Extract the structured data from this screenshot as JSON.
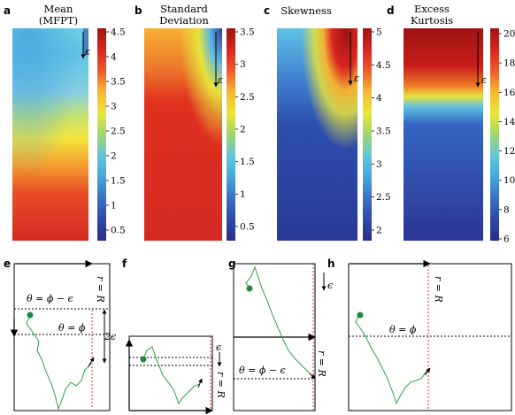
{
  "panel_labels": {
    "a": "a",
    "b": "b",
    "c": "c",
    "d": "d",
    "e": "e",
    "f": "f",
    "g": "g",
    "h": "h"
  },
  "titles": {
    "a": [
      "Mean",
      "(MFPT)"
    ],
    "b": [
      "Standard",
      "Deviation"
    ],
    "c": [
      "Skewness"
    ],
    "d": [
      "Excess",
      "Kurtosis"
    ]
  },
  "epsilon": "ε",
  "colorbars": {
    "a": {
      "ticks": [
        "4.5",
        "4",
        "3.5",
        "3",
        "2.5",
        "2",
        "1.5",
        "1",
        "0.5"
      ]
    },
    "b": {
      "ticks": [
        "3.5",
        "3",
        "2.5",
        "2",
        "1.5",
        "1",
        "0.5"
      ]
    },
    "c": {
      "ticks": [
        "5",
        "4.5",
        "4",
        "3.5",
        "3",
        "2.5",
        "2"
      ]
    },
    "d": {
      "ticks": [
        "20",
        "18",
        "16",
        "14",
        "12",
        "10",
        "8",
        "6"
      ]
    }
  },
  "colormap": [
    "#2a2e86",
    "#2f49a8",
    "#3a6fc4",
    "#46a6dc",
    "#61c6d8",
    "#9fd56e",
    "#e9e636",
    "#f7b733",
    "#ee5a2a",
    "#d9251f",
    "#9c1414"
  ],
  "schematics": {
    "e": {
      "r_label": "r = R",
      "theta_top": "θ = ϕ − ϵ",
      "theta_mid": "θ = ϕ",
      "two_eps": "2ϵ"
    },
    "f": {
      "r_label": "r = R",
      "eps": "ϵ"
    },
    "g": {
      "r_label": "r = R",
      "theta": "θ = ϕ − ϵ",
      "eps": "ϵ"
    },
    "h": {
      "r_label": "r = R",
      "theta": "θ = ϕ"
    }
  },
  "colors": {
    "path": "#2ea043",
    "dot": "#1a8a3a",
    "red_dash": "#e03030"
  }
}
